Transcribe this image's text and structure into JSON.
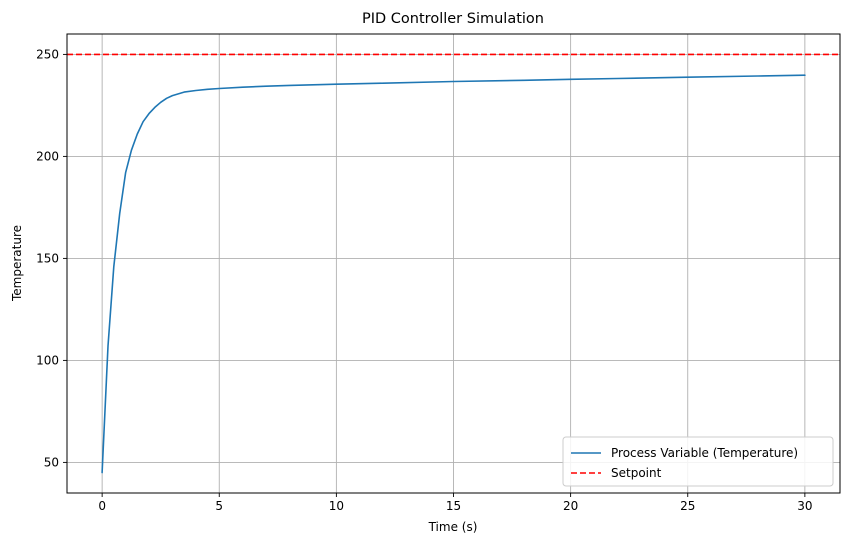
{
  "chart_data": {
    "type": "line",
    "title": "PID Controller Simulation",
    "xlabel": "Time (s)",
    "ylabel": "Temperature",
    "xlim": [
      -1.5,
      31.5
    ],
    "ylim": [
      35,
      260
    ],
    "xticks": [
      0,
      5,
      10,
      15,
      20,
      25,
      30
    ],
    "yticks": [
      50,
      100,
      150,
      200,
      250
    ],
    "grid": true,
    "legend_position": "lower-right",
    "series": [
      {
        "name": "Process Variable (Temperature)",
        "color": "#1f77b4",
        "style": "solid",
        "x": [
          0,
          0.25,
          0.5,
          0.75,
          1,
          1.25,
          1.5,
          1.75,
          2,
          2.25,
          2.5,
          2.75,
          3,
          3.5,
          4,
          4.5,
          5,
          6,
          7,
          8,
          10,
          12,
          15,
          18,
          20,
          22,
          25,
          28,
          30
        ],
        "y": [
          45,
          107,
          146,
          172,
          192,
          203,
          211,
          217,
          221,
          224,
          226.5,
          228.5,
          229.8,
          231.5,
          232.3,
          232.9,
          233.3,
          233.9,
          234.4,
          234.8,
          235.4,
          235.9,
          236.7,
          237.3,
          237.8,
          238.2,
          238.8,
          239.4,
          239.8
        ]
      },
      {
        "name": "Setpoint",
        "color": "#ff0000",
        "style": "dashed",
        "constant_y": 250
      }
    ]
  }
}
